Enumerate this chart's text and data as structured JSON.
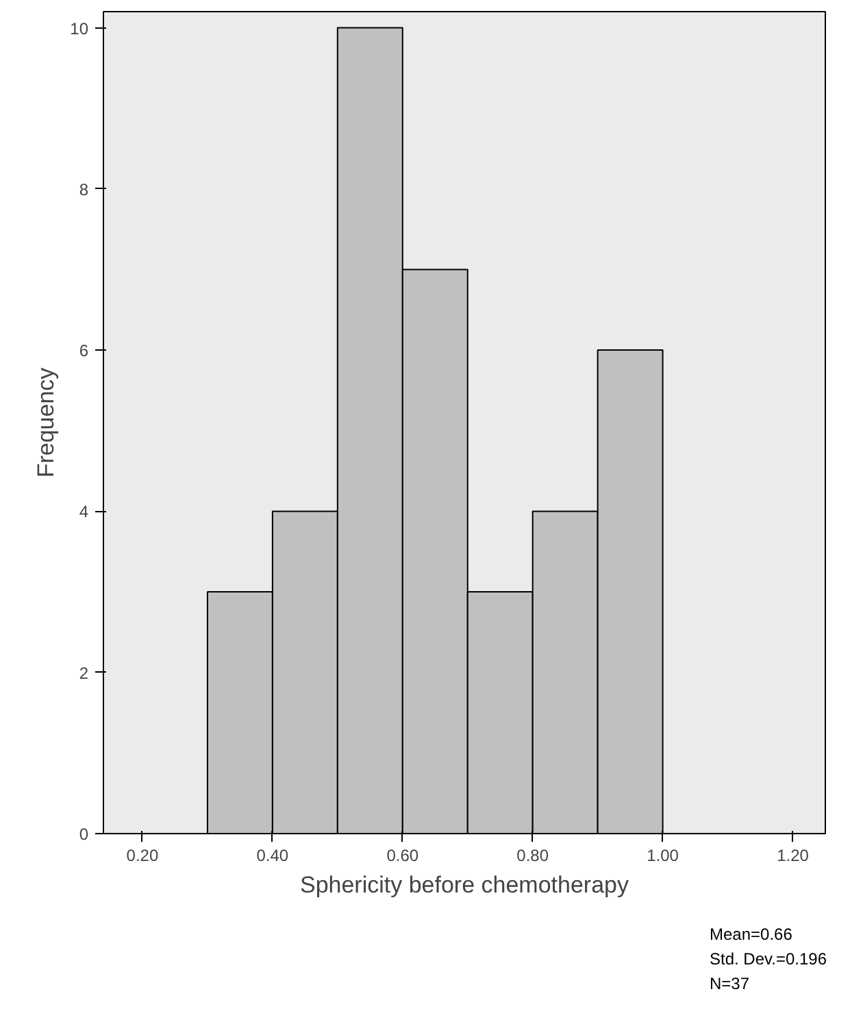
{
  "chart_data": {
    "type": "histogram",
    "xlabel": "Sphericity before chemotherapy",
    "ylabel": "Frequency",
    "bins": [
      0.3,
      0.4,
      0.5,
      0.6,
      0.7,
      0.8,
      0.9,
      1.0
    ],
    "values": [
      3,
      4,
      10,
      7,
      3,
      4,
      6
    ],
    "color": "#c0c0c0",
    "xlim": [
      0.14,
      1.25
    ],
    "xticks": [
      {
        "value": 0.2,
        "label": "0.20"
      },
      {
        "value": 0.4,
        "label": "0.40"
      },
      {
        "value": 0.6,
        "label": "0.60"
      },
      {
        "value": 0.8,
        "label": "0.80"
      },
      {
        "value": 1.0,
        "label": "1.00"
      },
      {
        "value": 1.2,
        "label": "1.20"
      }
    ],
    "ylim": [
      0,
      10.2
    ],
    "yticks": [
      0,
      2,
      4,
      6,
      8,
      10
    ],
    "grid": false,
    "annotations": [
      "Mean=0.66",
      "Std. Dev.=0.196",
      "N=37"
    ]
  }
}
